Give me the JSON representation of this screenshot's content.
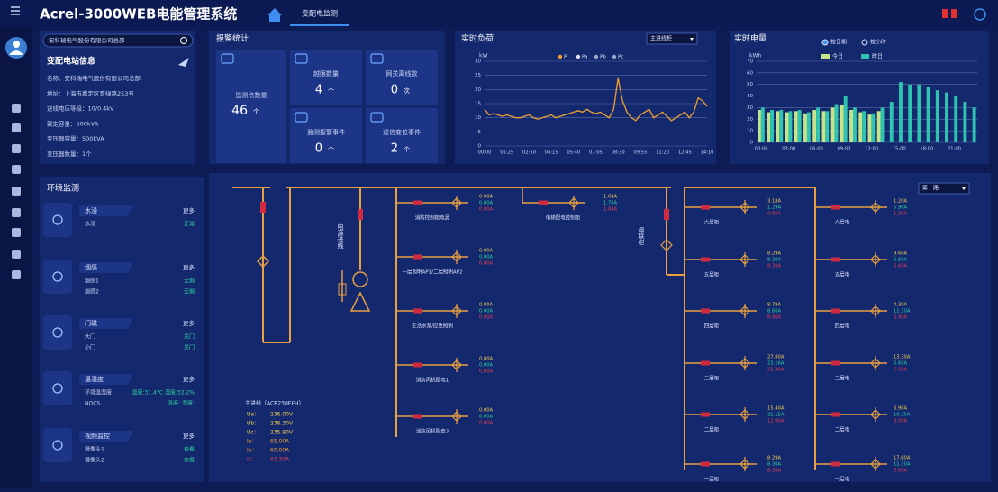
{
  "header": {
    "title": "Acrel-3000WEB电能管理系统",
    "tab": "变配电监测"
  },
  "search": {
    "placeholder": "安科瑞电气股份有限公司总部"
  },
  "station_info": {
    "title": "变配电站信息",
    "rows": [
      "名称：安科瑞电气股份有限公司总部",
      "地址：上海市嘉定区育绿路253号",
      "进线电压等级：10/0.4kV",
      "额定容量：500kVA",
      "变压器容量：500kVA",
      "变压器数量：1个"
    ]
  },
  "stats": {
    "title": "报警统计",
    "items": [
      {
        "label": "监测点数量",
        "value": "46",
        "unit": "个"
      },
      {
        "label": "越限数量",
        "value": "4",
        "unit": "个"
      },
      {
        "label": "网关离线数",
        "value": "0",
        "unit": "次"
      },
      {
        "label": "监测报警事件",
        "value": "0",
        "unit": "个"
      },
      {
        "label": "遥信变位事件",
        "value": "2",
        "unit": "个"
      }
    ]
  },
  "chart_data": [
    {
      "type": "line",
      "title": "实时负荷",
      "y_label": "kW",
      "selector": "主进线柜",
      "categories": [
        "00:00",
        null,
        null,
        null,
        null,
        "01:25",
        null,
        null,
        null,
        null,
        "02:50",
        null,
        null,
        null,
        null,
        "04:15",
        null,
        null,
        null,
        null,
        "05:40",
        null,
        null,
        null,
        null,
        "07:05",
        null,
        null,
        null,
        null,
        "08:30",
        null,
        null,
        null,
        null,
        "09:55",
        null,
        null,
        null,
        null,
        "11:20",
        null,
        null,
        null,
        null,
        "12:45",
        null,
        null,
        null,
        null,
        "14:10"
      ],
      "series": [
        {
          "name": "P",
          "color": "#f0a030",
          "values": [
            13,
            11,
            11.5,
            11,
            10.5,
            11,
            10.5,
            10,
            10,
            10.5,
            11,
            10,
            9.5,
            10,
            10.5,
            11,
            10,
            10.5,
            11,
            11.5,
            12,
            12.5,
            12,
            13,
            12,
            11.5,
            12,
            11,
            10,
            13,
            24,
            16,
            12,
            10,
            9,
            11,
            12,
            13,
            10,
            11,
            12,
            10.5,
            9,
            10,
            11,
            12,
            10,
            12,
            17,
            16,
            14
          ]
        }
      ],
      "other_legend": [
        {
          "name": "Pa",
          "color": "#e0e4f0"
        },
        {
          "name": "Pb",
          "color": "#9aa6c8"
        },
        {
          "name": "Pc",
          "color": "#9aa6c8"
        }
      ],
      "ylim": [
        0,
        30
      ],
      "yticks": [
        0,
        5,
        10,
        15,
        20,
        25,
        30
      ],
      "grid": true
    },
    {
      "type": "bar",
      "title": "实时电量",
      "y_label": "kWh",
      "options": [
        "按日期",
        "按小时"
      ],
      "categories": [
        "00:00",
        null,
        null,
        "03:00",
        null,
        null,
        "06:00",
        null,
        null,
        "09:00",
        null,
        null,
        "12:00",
        null,
        null,
        "15:00",
        null,
        null,
        "18:00",
        null,
        null,
        "21:00",
        null,
        null
      ],
      "series": [
        {
          "name": "今日",
          "color": "#c6e38a",
          "values": [
            28,
            26,
            27,
            26,
            27,
            25,
            28,
            27,
            30,
            32,
            28,
            26,
            24,
            27,
            null,
            null,
            null,
            null,
            null,
            null,
            null,
            null,
            null,
            null
          ]
        },
        {
          "name": "昨日",
          "color": "#2ec4b0",
          "values": [
            30,
            28,
            28,
            27,
            28,
            26,
            30,
            27,
            33,
            40,
            30,
            27,
            25,
            30,
            35,
            52,
            50,
            50,
            48,
            45,
            43,
            40,
            35,
            30
          ]
        }
      ],
      "ylim": [
        0,
        70
      ],
      "yticks": [
        0,
        10,
        20,
        30,
        40,
        50,
        60,
        70
      ],
      "grid": true
    }
  ],
  "environment": {
    "title": "环境监测",
    "cards": [
      {
        "title": "水浸",
        "more": "更多",
        "rows": [
          [
            "水浸",
            "正常"
          ]
        ]
      },
      {
        "title": "烟感",
        "more": "更多",
        "rows": [
          [
            "烟感1",
            "无烟"
          ],
          [
            "烟感2",
            "无烟"
          ]
        ]
      },
      {
        "title": "门磁",
        "more": "更多",
        "rows": [
          [
            "大门",
            "关门"
          ],
          [
            "小门",
            "关门"
          ]
        ]
      },
      {
        "title": "温湿度",
        "more": "更多",
        "rows": [
          [
            "环境温湿度",
            "温度:31.4°C 湿度:32.2%"
          ],
          [
            "NOCS",
            "温度: 湿度:"
          ]
        ]
      },
      {
        "title": "视频监控",
        "more": "更多",
        "rows": [
          [
            "摄像头1",
            "查看"
          ],
          [
            "摄像头2",
            "查看"
          ]
        ]
      }
    ]
  },
  "diagram": {
    "dropdown": "第一路",
    "incoming": "电源进线",
    "tie": "母联柜",
    "mid_feeders": [
      {
        "name": "消防控制柜电源",
        "currents": [
          "0.00A",
          "0.00A",
          "0.00A"
        ]
      },
      {
        "name": "一层照明AP1/二层照明AP2",
        "currents": [
          "0.00A",
          "0.00A",
          "0.00A"
        ]
      },
      {
        "name": "生活水泵/应急照明",
        "currents": [
          "0.00A",
          "0.00A",
          "0.00A"
        ]
      },
      {
        "name": "消防风机配电1",
        "currents": [
          "0.00A",
          "0.00A",
          "0.00A"
        ]
      },
      {
        "name": "消防风机配电2",
        "currents": [
          "0.00A",
          "0.00A",
          "0.00A"
        ]
      }
    ],
    "top_feeder": {
      "name": "电梯配电控制柜",
      "currents": [
        "1.68A",
        "1.76A",
        "1.84A"
      ]
    },
    "col1": [
      {
        "name": "六层柜",
        "currents": [
          "3.18A",
          "1.29A",
          "0.00A"
        ]
      },
      {
        "name": "五层柜",
        "currents": [
          "8.29A",
          "8.30A",
          "8.30A"
        ]
      },
      {
        "name": "四层柜",
        "currents": [
          "8.79A",
          "8.60A",
          "8.80A"
        ]
      },
      {
        "name": "三层柜",
        "currents": [
          "27.80A",
          "23.16A",
          "21.30A"
        ]
      },
      {
        "name": "二层柜",
        "currents": [
          "15.40A",
          "21.15A",
          "12.00A"
        ]
      },
      {
        "name": "一层柜",
        "currents": [
          "8.29A",
          "8.30A",
          "8.30A"
        ]
      }
    ],
    "col2": [
      {
        "name": "六层电",
        "currents": [
          "1.20A",
          "6.90A",
          "1.30A"
        ]
      },
      {
        "name": "五层电",
        "currents": [
          "9.60A",
          "6.60A",
          "6.60A"
        ]
      },
      {
        "name": "四层电",
        "currents": [
          "4.30A",
          "11.30A",
          "3.90A"
        ]
      },
      {
        "name": "三层电",
        "currents": [
          "13.30A",
          "6.60A",
          "6.60A"
        ]
      },
      {
        "name": "二层电",
        "currents": [
          "6.90A",
          "10.30A",
          "8.00A"
        ]
      },
      {
        "name": "一层电",
        "currents": [
          "17.80A",
          "11.30A",
          "6.80A"
        ]
      }
    ],
    "meter": {
      "title": "主进线（ACR230EFH）",
      "rows": [
        [
          "Ua：",
          "236.00V"
        ],
        [
          "Ub：",
          "236.30V"
        ],
        [
          "Uc：",
          "235.90V"
        ],
        [
          "Ia：",
          "65.00A"
        ],
        [
          "Ib：",
          "60.00A"
        ],
        [
          "Ic：",
          "63.30A"
        ]
      ]
    }
  }
}
